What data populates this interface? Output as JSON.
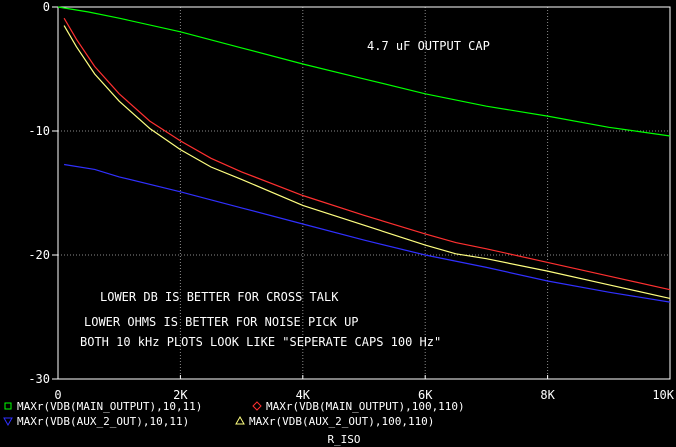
{
  "chart_data": {
    "type": "line",
    "xlabel": "R_ISO",
    "ylabel": "",
    "xlim": [
      0,
      10000
    ],
    "ylim": [
      -30,
      0
    ],
    "grid": true,
    "x_ticks": [
      {
        "v": 0,
        "label": "0"
      },
      {
        "v": 2000,
        "label": "2K"
      },
      {
        "v": 4000,
        "label": "4K"
      },
      {
        "v": 6000,
        "label": "6K"
      },
      {
        "v": 8000,
        "label": "8K"
      },
      {
        "v": 10000,
        "label": "10K"
      }
    ],
    "y_ticks": [
      {
        "v": 0,
        "label": "0"
      },
      {
        "v": -10,
        "label": "-10"
      },
      {
        "v": -20,
        "label": "-20"
      },
      {
        "v": -30,
        "label": "-30"
      }
    ],
    "annotations": [
      "4.7 uF OUTPUT CAP",
      "LOWER DB IS BETTER FOR CROSS TALK",
      "LOWER OHMS IS BETTER FOR NOISE PICK UP",
      "BOTH 10 kHz PLOTS LOOK LIKE \"SEPERATE CAPS 100 Hz\""
    ],
    "series": [
      {
        "name": "MAXr(VDB(MAIN_OUTPUT),10,11)",
        "color": "#00ff00",
        "marker": "square",
        "x": [
          0,
          500,
          1000,
          2000,
          3000,
          4000,
          5000,
          6000,
          7000,
          8000,
          9000,
          10000
        ],
        "y": [
          0,
          -0.4,
          -0.9,
          -2.0,
          -3.3,
          -4.6,
          -5.8,
          -7.0,
          -8.0,
          -8.8,
          -9.7,
          -10.4
        ]
      },
      {
        "name": "MAXr(VDB(MAIN_OUTPUT),100,110)",
        "color": "#ff3030",
        "marker": "diamond",
        "x": [
          100,
          300,
          600,
          1000,
          1500,
          2000,
          2500,
          3000,
          4000,
          5000,
          6000,
          6500,
          7000,
          8000,
          9000,
          10000
        ],
        "y": [
          -0.9,
          -2.6,
          -4.8,
          -7.0,
          -9.2,
          -10.8,
          -12.2,
          -13.3,
          -15.2,
          -16.8,
          -18.3,
          -19.0,
          -19.5,
          -20.6,
          -21.7,
          -22.8
        ]
      },
      {
        "name": "MAXr(VDB(AUX_2_OUT),10,11)",
        "color": "#3030ff",
        "marker": "triangle-down",
        "x": [
          100,
          600,
          1000,
          2000,
          3000,
          4000,
          5000,
          6000,
          7000,
          8000,
          9000,
          10000
        ],
        "y": [
          -12.7,
          -13.1,
          -13.7,
          -14.9,
          -16.2,
          -17.5,
          -18.8,
          -20.0,
          -21.0,
          -22.1,
          -23.0,
          -23.8
        ]
      },
      {
        "name": "MAXr(VDB(AUX_2_OUT),100,110)",
        "color": "#ffff80",
        "marker": "triangle-up",
        "x": [
          100,
          300,
          600,
          1000,
          1500,
          2000,
          2500,
          3000,
          4000,
          5000,
          6000,
          6500,
          7000,
          8000,
          9000,
          10000
        ],
        "y": [
          -1.5,
          -3.2,
          -5.4,
          -7.6,
          -9.8,
          -11.5,
          -12.9,
          -13.9,
          -16.0,
          -17.6,
          -19.2,
          -19.9,
          -20.3,
          -21.3,
          -22.4,
          -23.5
        ]
      }
    ]
  }
}
